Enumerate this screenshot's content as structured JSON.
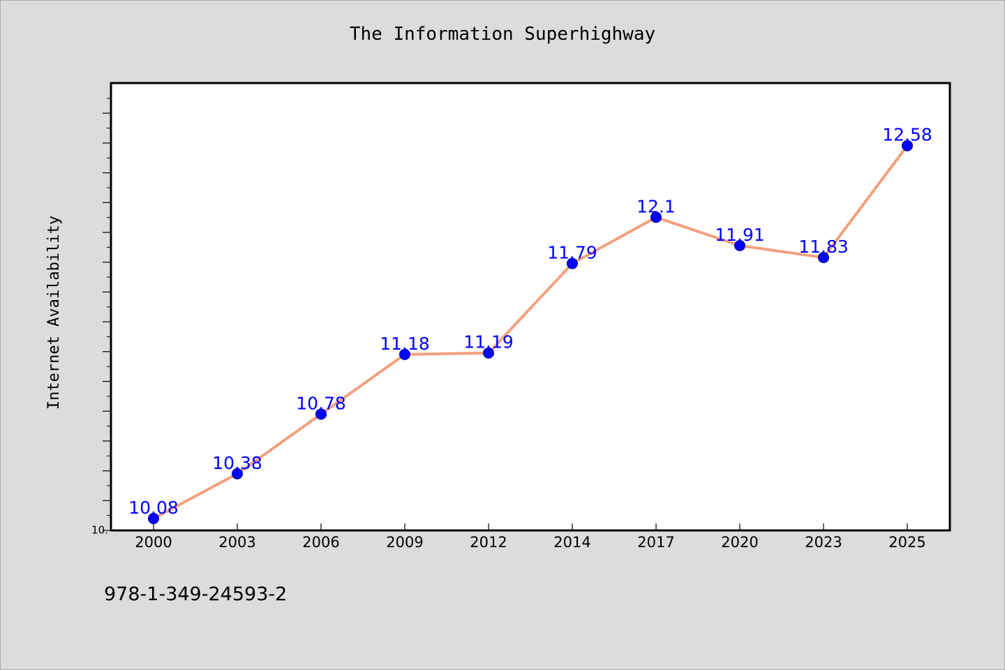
{
  "chart_data": {
    "type": "line",
    "title": "The Information Superhighway",
    "xlabel": "",
    "ylabel": "Internet Availability",
    "categories": [
      "2000",
      "2003",
      "2006",
      "2009",
      "2012",
      "2014",
      "2017",
      "2020",
      "2023",
      "2025"
    ],
    "series": [
      {
        "values": [
          10.08,
          10.38,
          10.78,
          11.18,
          11.19,
          11.79,
          12.1,
          11.91,
          11.83,
          12.58
        ],
        "data_labels": [
          "10.08",
          "10.38",
          "10.78",
          "11.18",
          "11.19",
          "11.79",
          "12.1",
          "11.91",
          "11.83",
          "12.58"
        ]
      }
    ],
    "y_tick_label": "10.",
    "ylim": [
      10.0,
      13.0
    ],
    "grid": false,
    "line_color": "#f4a07e",
    "marker_color": "#0000ff",
    "label_color": "#0000ff"
  },
  "footer": {
    "isbn": "978-1-349-24593-2"
  }
}
